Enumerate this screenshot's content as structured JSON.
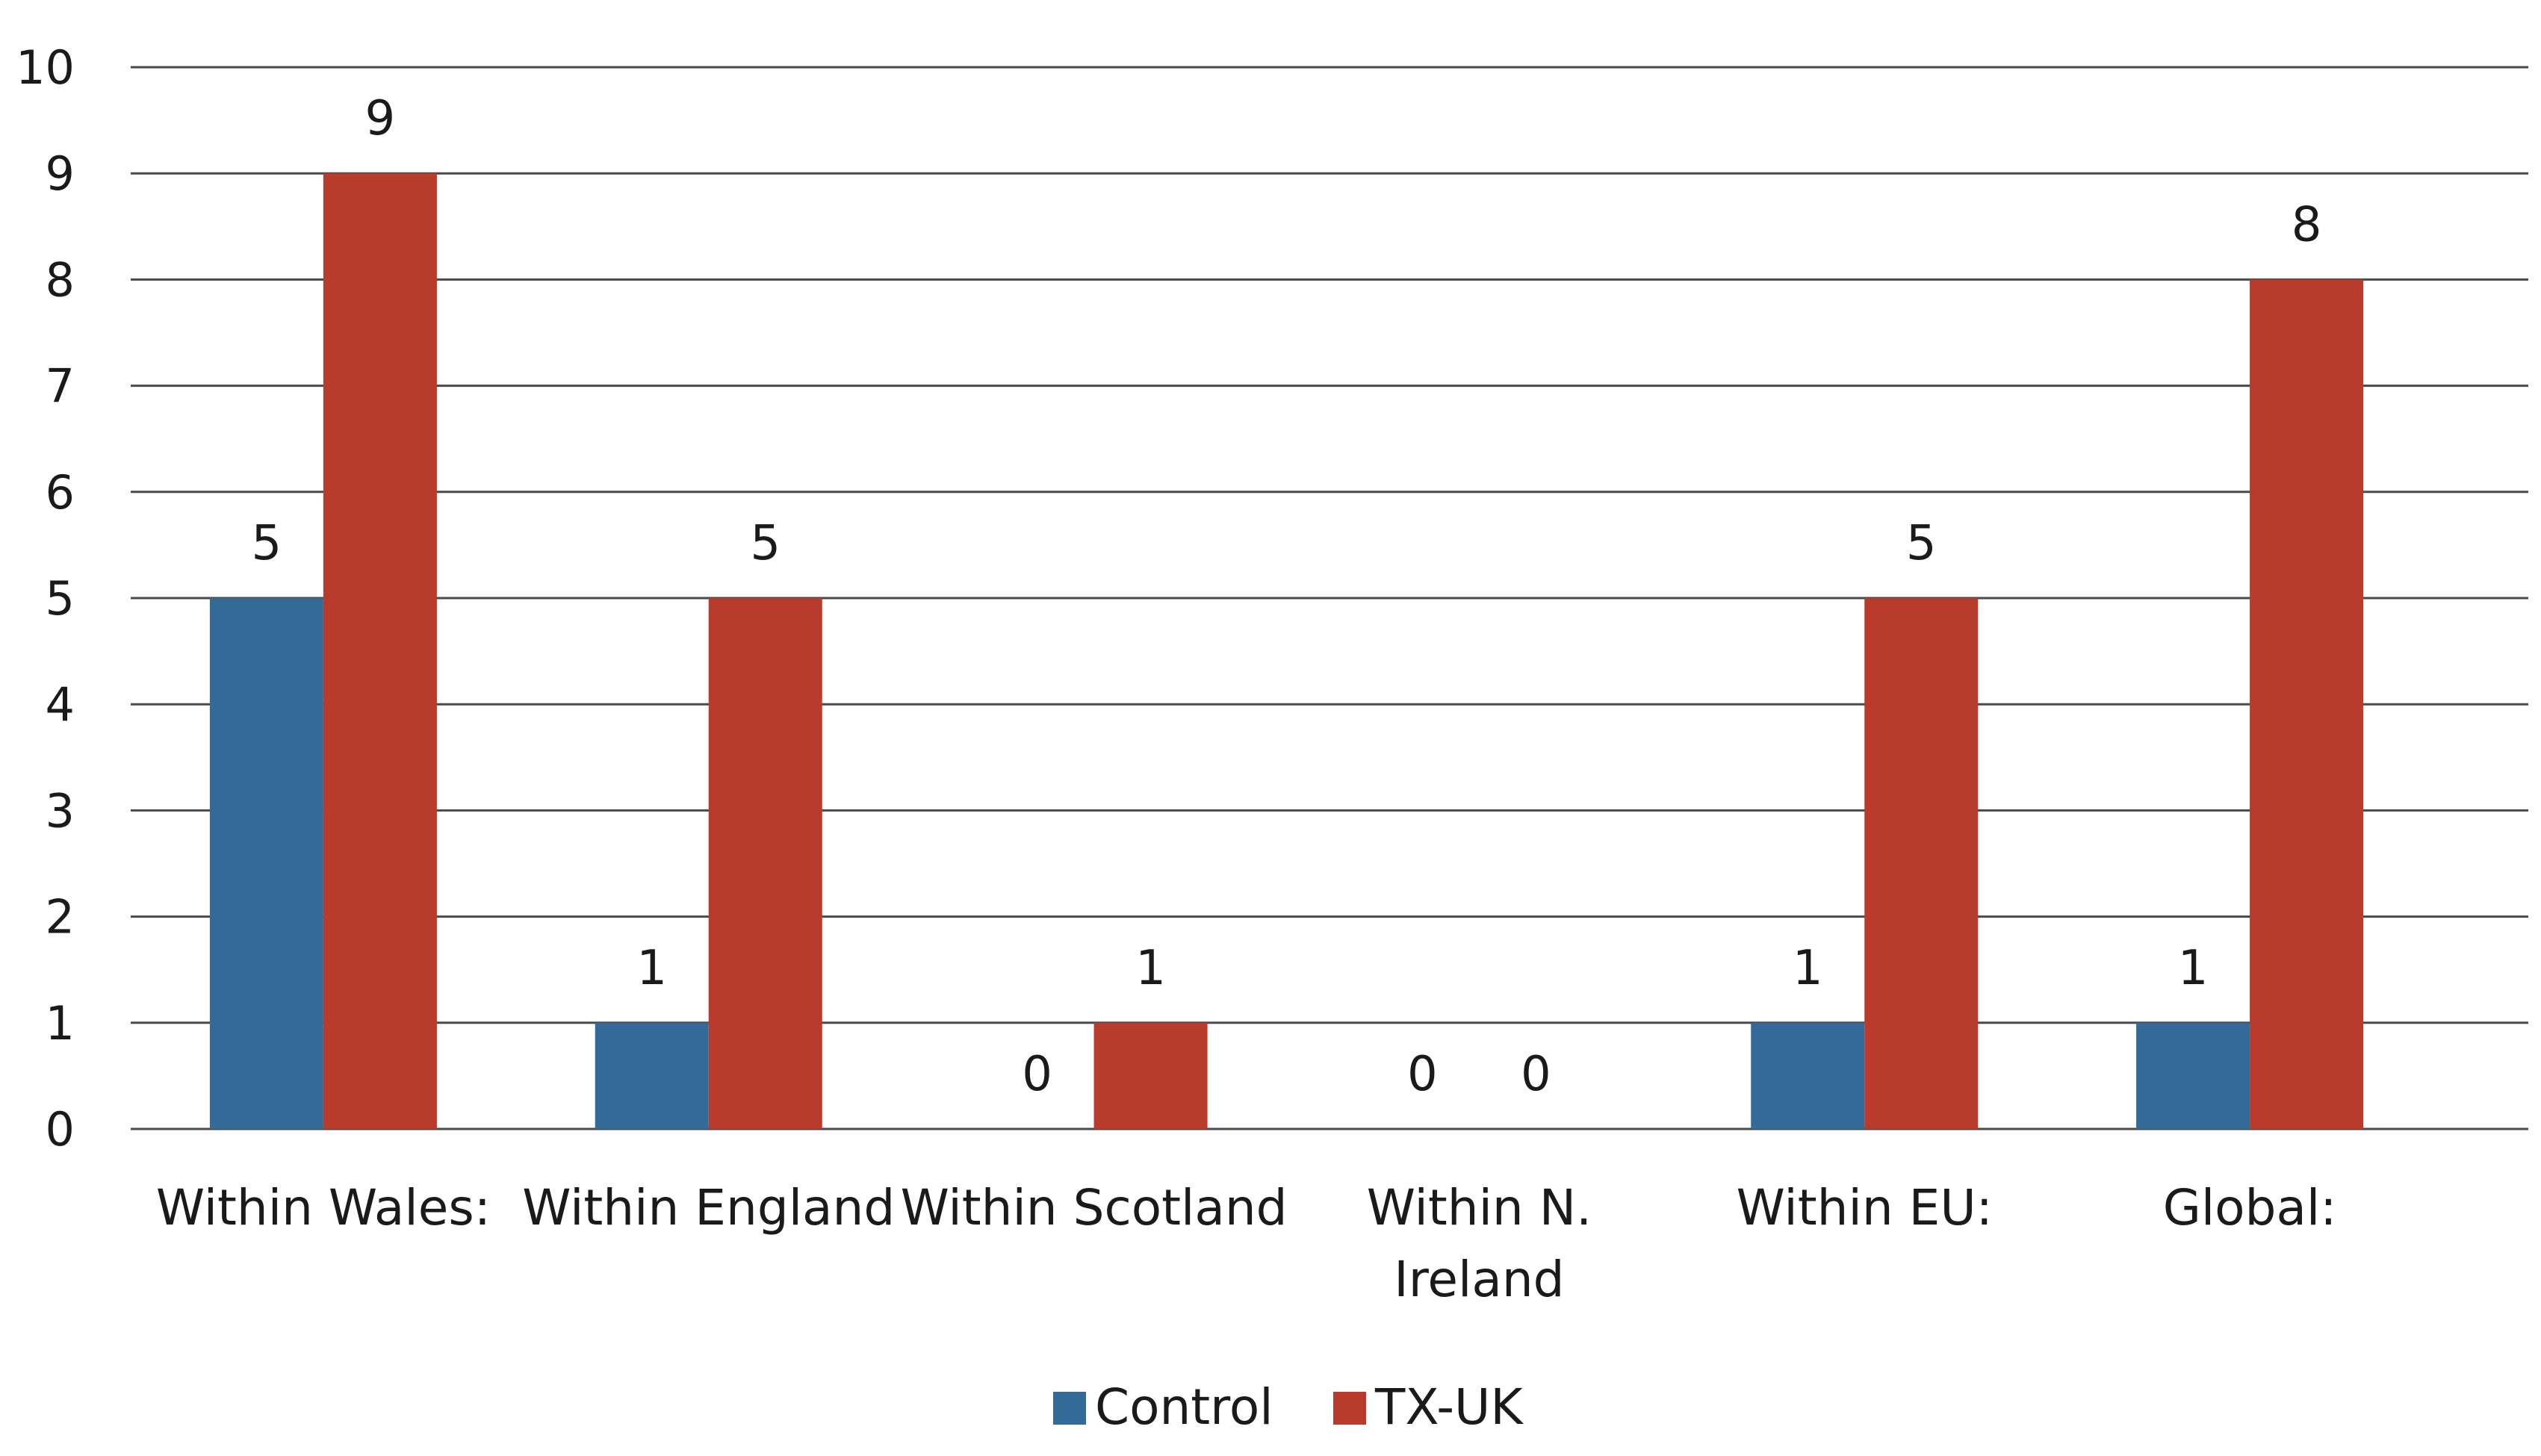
{
  "chart_data": {
    "type": "bar",
    "categories": [
      [
        "Within Wales:"
      ],
      [
        "Within England"
      ],
      [
        "Within Scotland"
      ],
      [
        "Within N.",
        "Ireland"
      ],
      [
        "Within EU:"
      ],
      [
        "Global:"
      ]
    ],
    "series": [
      {
        "name": "Control",
        "color": "#336A98",
        "values": [
          5,
          1,
          0,
          0,
          1,
          1
        ]
      },
      {
        "name": "TX-UK",
        "color": "#B83B2B",
        "values": [
          9,
          5,
          1,
          0,
          5,
          8
        ]
      }
    ],
    "title": "",
    "xlabel": "",
    "ylabel": "",
    "ylim": [
      0,
      10
    ],
    "yticks": [
      0,
      1,
      2,
      3,
      4,
      5,
      6,
      7,
      8,
      9,
      10
    ],
    "grid": true,
    "data_labels": true,
    "legend_position": "bottom"
  }
}
